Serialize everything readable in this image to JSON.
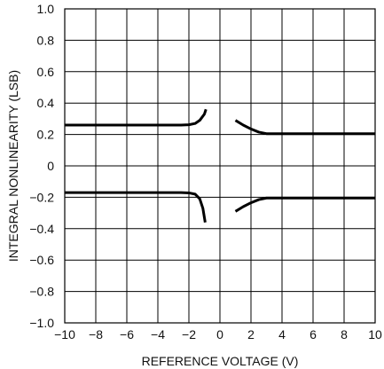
{
  "chart_data": {
    "type": "line",
    "title": "",
    "xlabel": "REFERENCE VOLTAGE (V)",
    "ylabel": "INTEGRAL NONLINEARITY (LSB)",
    "xlim": [
      -10,
      10
    ],
    "ylim": [
      -1.0,
      1.0
    ],
    "grid": true,
    "x_ticks": [
      -10,
      -8,
      -6,
      -4,
      -2,
      0,
      2,
      4,
      6,
      8,
      10
    ],
    "x_tick_labels": [
      "−10",
      "−8",
      "−6",
      "−4",
      "−2",
      "0",
      "2",
      "4",
      "6",
      "8",
      "10"
    ],
    "y_ticks": [
      1.0,
      0.8,
      0.6,
      0.4,
      0.2,
      0,
      -0.2,
      -0.4,
      -0.6,
      -0.8,
      -1.0
    ],
    "y_tick_labels": [
      "1.0",
      "0.8",
      "0.6",
      "0.4",
      "0.2",
      "0",
      "−0.2",
      "−0.4",
      "−0.6",
      "−0.8",
      "−1.0"
    ],
    "series": [
      {
        "points": [
          [
            -10,
            0.26
          ],
          [
            -2.5,
            0.26
          ],
          [
            -2.0,
            0.262
          ],
          [
            -1.6,
            0.27
          ],
          [
            -1.3,
            0.29
          ],
          [
            -1.0,
            0.33
          ],
          [
            -0.9,
            0.36
          ]
        ]
      },
      {
        "points": [
          [
            1.0,
            0.29
          ],
          [
            1.5,
            0.26
          ],
          [
            2.0,
            0.235
          ],
          [
            2.5,
            0.215
          ],
          [
            3.0,
            0.205
          ],
          [
            10,
            0.205
          ]
        ]
      },
      {
        "points": [
          [
            -10,
            -0.17
          ],
          [
            -2.5,
            -0.17
          ],
          [
            -2.0,
            -0.172
          ],
          [
            -1.6,
            -0.18
          ],
          [
            -1.3,
            -0.21
          ],
          [
            -1.1,
            -0.27
          ],
          [
            -0.95,
            -0.36
          ]
        ]
      },
      {
        "points": [
          [
            1.0,
            -0.29
          ],
          [
            1.5,
            -0.26
          ],
          [
            2.0,
            -0.235
          ],
          [
            2.5,
            -0.215
          ],
          [
            3.0,
            -0.205
          ],
          [
            10,
            -0.205
          ]
        ]
      }
    ]
  }
}
